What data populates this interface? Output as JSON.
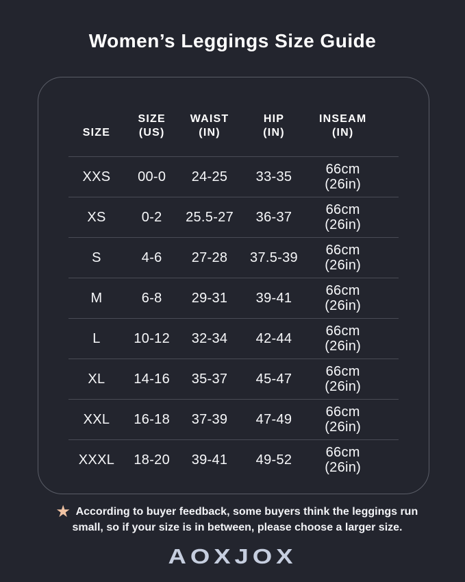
{
  "title": "Women’s Leggings Size Guide",
  "size_table": {
    "columns": [
      {
        "label": "SIZE",
        "unit": ""
      },
      {
        "label": "SIZE",
        "unit": "(US)"
      },
      {
        "label": "WAIST",
        "unit": "(IN)"
      },
      {
        "label": "HIP",
        "unit": "(IN)"
      },
      {
        "label": "INSEAM",
        "unit": "(IN)"
      }
    ],
    "rows": [
      {
        "size": "XXS",
        "us": "00-0",
        "waist": "24-25",
        "hip": "33-35",
        "inseam_cm": "66cm",
        "inseam_in": "(26in)"
      },
      {
        "size": "XS",
        "us": "0-2",
        "waist": "25.5-27",
        "hip": "36-37",
        "inseam_cm": "66cm",
        "inseam_in": "(26in)"
      },
      {
        "size": "S",
        "us": "4-6",
        "waist": "27-28",
        "hip": "37.5-39",
        "inseam_cm": "66cm",
        "inseam_in": "(26in)"
      },
      {
        "size": "M",
        "us": "6-8",
        "waist": "29-31",
        "hip": "39-41",
        "inseam_cm": "66cm",
        "inseam_in": "(26in)"
      },
      {
        "size": "L",
        "us": "10-12",
        "waist": "32-34",
        "hip": "42-44",
        "inseam_cm": "66cm",
        "inseam_in": "(26in)"
      },
      {
        "size": "XL",
        "us": "14-16",
        "waist": "35-37",
        "hip": "45-47",
        "inseam_cm": "66cm",
        "inseam_in": "(26in)"
      },
      {
        "size": "XXL",
        "us": "16-18",
        "waist": "37-39",
        "hip": "47-49",
        "inseam_cm": "66cm",
        "inseam_in": "(26in)"
      },
      {
        "size": "XXXL",
        "us": "18-20",
        "waist": "39-41",
        "hip": "49-52",
        "inseam_cm": "66cm",
        "inseam_in": "(26in)"
      }
    ]
  },
  "note": {
    "icon": "star",
    "star_glyph": "★",
    "line1": "According to buyer feedback, some buyers think the leggings run",
    "line2": "small, so if your size is in between, please choose a larger size."
  },
  "brand": "AOXJOX",
  "colors": {
    "background": "#23252e",
    "panel_border": "#5a5d67",
    "divider": "#4a4c56",
    "text": "#f7f8fa",
    "star": "#f0c3a3",
    "logo": "#c6cedf"
  },
  "chart_data": {
    "type": "table",
    "title": "Women’s Leggings Size Guide",
    "columns": [
      "SIZE",
      "SIZE (US)",
      "WAIST (IN)",
      "HIP (IN)",
      "INSEAM (IN)"
    ],
    "rows": [
      [
        "XXS",
        "00-0",
        "24-25",
        "33-35",
        "66cm (26in)"
      ],
      [
        "XS",
        "0-2",
        "25.5-27",
        "36-37",
        "66cm (26in)"
      ],
      [
        "S",
        "4-6",
        "27-28",
        "37.5-39",
        "66cm (26in)"
      ],
      [
        "M",
        "6-8",
        "29-31",
        "39-41",
        "66cm (26in)"
      ],
      [
        "L",
        "10-12",
        "32-34",
        "42-44",
        "66cm (26in)"
      ],
      [
        "XL",
        "14-16",
        "35-37",
        "45-47",
        "66cm (26in)"
      ],
      [
        "XXL",
        "16-18",
        "37-39",
        "47-49",
        "66cm (26in)"
      ],
      [
        "XXXL",
        "18-20",
        "39-41",
        "49-52",
        "66cm (26in)"
      ]
    ],
    "footnote": "According to buyer feedback, some buyers think the leggings run small, so if your size is in between, please choose a larger size.",
    "brand": "AOXJOX"
  }
}
